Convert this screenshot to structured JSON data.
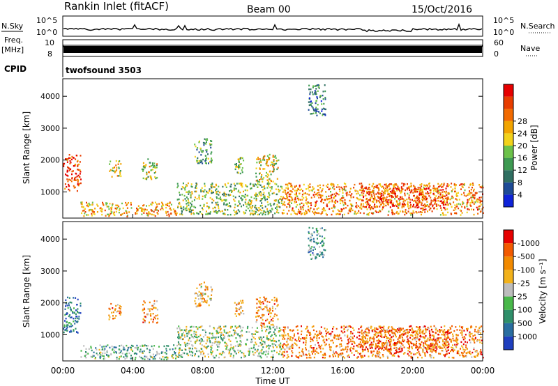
{
  "header": {
    "station": "Rankin Inlet (fitACF)",
    "beam": "Beam 00",
    "date": "15/Oct/2016"
  },
  "aux": {
    "nsky_label": "N.Sky",
    "nsky_ticks": [
      "10^5",
      "10^0"
    ],
    "nsearch_label": "N.Search",
    "nsearch_ticks": [
      "10^5",
      "10^0"
    ],
    "freq_label": "Freq.",
    "freq_unit": "[MHz]",
    "freq_ticks": [
      "10",
      "8"
    ],
    "nave_label": "Nave",
    "nave_ticks": [
      "60",
      "0"
    ],
    "cpid_label": "CPID",
    "cpid_value": "twofsound 3503"
  },
  "chart_data": [
    {
      "type": "heatmap",
      "name": "power",
      "ylabel": "Slant Range [km]",
      "yticks": [
        1000,
        2000,
        3000,
        4000
      ],
      "ylim": [
        180,
        4550
      ],
      "xlabel": "Time UT",
      "xticks": [
        "00:00",
        "04:00",
        "08:00",
        "12:00",
        "16:00",
        "20:00",
        "00:00"
      ],
      "xlim_hours": [
        0,
        24
      ],
      "colorbar": {
        "label": "Power [dB]",
        "ticks": [
          "4",
          "8",
          "12",
          "16",
          "20",
          "24",
          "28"
        ],
        "colors": [
          "#0f23d9",
          "#1e4b96",
          "#2f6f61",
          "#3e9a52",
          "#6cc24a",
          "#f2d21b",
          "#f2a400",
          "#f26a00",
          "#e83d00",
          "#e60000"
        ]
      },
      "echo_regions": [
        {
          "t": [
            0.0,
            1.0
          ],
          "r": [
            1050,
            2200
          ],
          "level": 0.85
        },
        {
          "t": [
            1.0,
            6.5
          ],
          "r": [
            250,
            700
          ],
          "level": 0.65
        },
        {
          "t": [
            2.6,
            3.3
          ],
          "r": [
            1500,
            2000
          ],
          "level": 0.55
        },
        {
          "t": [
            4.5,
            5.4
          ],
          "r": [
            1400,
            2100
          ],
          "level": 0.5
        },
        {
          "t": [
            6.5,
            12.5
          ],
          "r": [
            300,
            1300
          ],
          "level": 0.45
        },
        {
          "t": [
            7.5,
            8.5
          ],
          "r": [
            1900,
            2700
          ],
          "level": 0.35
        },
        {
          "t": [
            9.8,
            10.3
          ],
          "r": [
            1600,
            2100
          ],
          "level": 0.45
        },
        {
          "t": [
            11.0,
            12.3
          ],
          "r": [
            1300,
            2200
          ],
          "level": 0.55
        },
        {
          "t": [
            12.5,
            24.0
          ],
          "r": [
            300,
            1300
          ],
          "level": 0.7
        },
        {
          "t": [
            17.0,
            22.0
          ],
          "r": [
            500,
            1200
          ],
          "level": 0.85
        },
        {
          "t": [
            14.0,
            15.0
          ],
          "r": [
            3400,
            4400
          ],
          "level": 0.25
        }
      ]
    },
    {
      "type": "heatmap",
      "name": "velocity",
      "ylabel": "Slant Range [km]",
      "yticks": [
        1000,
        2000,
        3000,
        4000
      ],
      "ylim": [
        180,
        4550
      ],
      "xlabel": "Time UT",
      "xticks": [
        "00:00",
        "04:00",
        "08:00",
        "12:00",
        "16:00",
        "20:00",
        "00:00"
      ],
      "xlim_hours": [
        0,
        24
      ],
      "colorbar": {
        "label": "Velocity [m s⁻¹]",
        "ticks": [
          "1000",
          "500",
          "100",
          "25",
          "-25",
          "-100",
          "-500",
          "-1000"
        ],
        "colors": [
          "#1f3fbf",
          "#2a6ea0",
          "#2f8f6a",
          "#49b84a",
          "#bdbdbd",
          "#f2b21b",
          "#f28a00",
          "#f25a00",
          "#e60000"
        ]
      },
      "echo_regions": [
        {
          "t": [
            0.0,
            1.0
          ],
          "r": [
            1050,
            2200
          ],
          "level": 0.2
        },
        {
          "t": [
            1.0,
            6.5
          ],
          "r": [
            250,
            700
          ],
          "level": 0.35
        },
        {
          "t": [
            2.6,
            3.3
          ],
          "r": [
            1500,
            2000
          ],
          "level": 0.7
        },
        {
          "t": [
            4.5,
            5.4
          ],
          "r": [
            1400,
            2100
          ],
          "level": 0.7
        },
        {
          "t": [
            6.5,
            12.5
          ],
          "r": [
            300,
            1300
          ],
          "level": 0.45
        },
        {
          "t": [
            7.5,
            8.5
          ],
          "r": [
            1900,
            2700
          ],
          "level": 0.65
        },
        {
          "t": [
            9.8,
            10.3
          ],
          "r": [
            1600,
            2100
          ],
          "level": 0.7
        },
        {
          "t": [
            11.0,
            12.3
          ],
          "r": [
            1300,
            2200
          ],
          "level": 0.7
        },
        {
          "t": [
            12.5,
            24.0
          ],
          "r": [
            300,
            1300
          ],
          "level": 0.75
        },
        {
          "t": [
            17.0,
            22.0
          ],
          "r": [
            500,
            1200
          ],
          "level": 0.8
        },
        {
          "t": [
            14.0,
            15.0
          ],
          "r": [
            3400,
            4400
          ],
          "level": 0.3
        }
      ]
    }
  ]
}
